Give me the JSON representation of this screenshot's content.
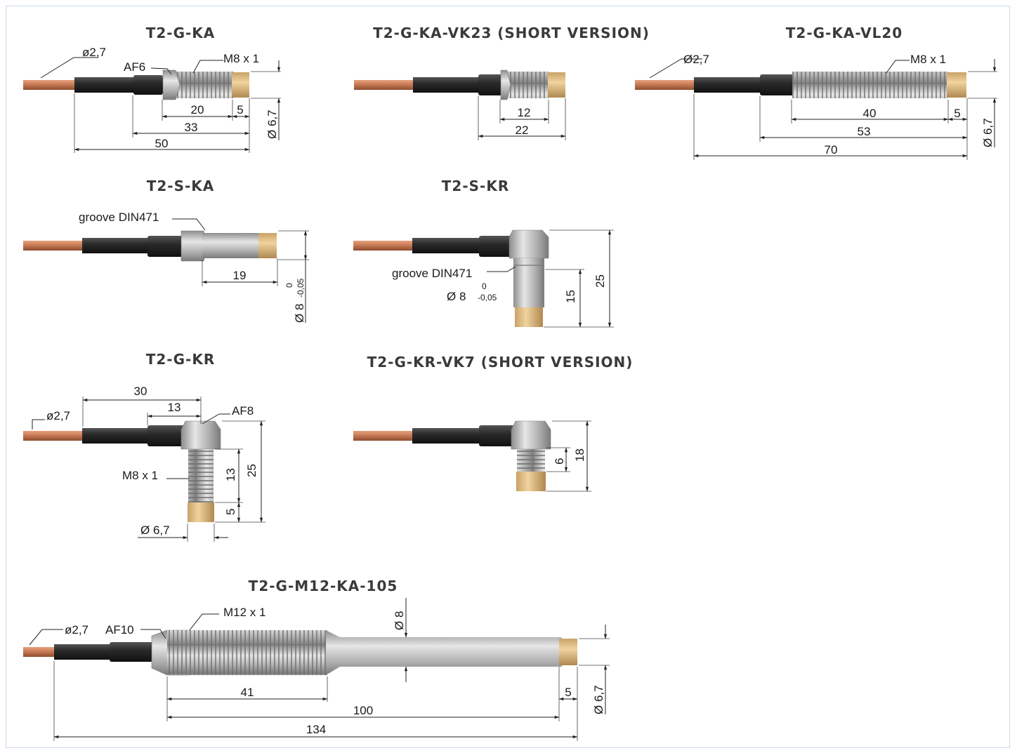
{
  "colors": {
    "copper": "#c87a55",
    "cable": "#2a2a2a",
    "steel": "#b8b8b8",
    "brass": "#d9b57a",
    "frame": "#c9d9e8"
  },
  "parts": [
    {
      "id": "t2-g-ka",
      "title": "T2-G-KA",
      "labels": {
        "cable_dia": "ø2,7",
        "af": "AF6",
        "thread": "M8 x 1",
        "d1": "20",
        "d2": "5",
        "d3": "33",
        "d4": "50",
        "dia": "Ø 6,7"
      }
    },
    {
      "id": "t2-g-ka-vk23",
      "title": "T2-G-KA-VK23 (SHORT VERSION)",
      "labels": {
        "d1": "12",
        "d2": "22"
      }
    },
    {
      "id": "t2-g-ka-vl20",
      "title": "T2-G-KA-VL20",
      "labels": {
        "cable_dia": "Ø2,7",
        "thread": "M8 x 1",
        "d1": "40",
        "d2": "5",
        "d3": "53",
        "d4": "70",
        "dia": "Ø 6,7"
      }
    },
    {
      "id": "t2-s-ka",
      "title": "T2-S-KA",
      "labels": {
        "groove": "groove DIN471",
        "d1": "19",
        "dia": "Ø 8",
        "tol_upper": "0",
        "tol_lower": "-0,05"
      }
    },
    {
      "id": "t2-s-kr",
      "title": "T2-S-KR",
      "labels": {
        "groove": "groove DIN471",
        "dia": "Ø 8",
        "tol_upper": "0",
        "tol_lower": "-0,05",
        "d1": "15",
        "d2": "25"
      }
    },
    {
      "id": "t2-g-kr",
      "title": "T2-G-KR",
      "labels": {
        "cable_dia": "ø2,7",
        "af": "AF8",
        "thread": "M8 x 1",
        "d1": "30",
        "d2": "13",
        "d3": "13",
        "d4": "25",
        "d5": "5",
        "dia": "Ø 6,7"
      }
    },
    {
      "id": "t2-g-kr-vk7",
      "title": "T2-G-KR-VK7 (SHORT VERSION)",
      "labels": {
        "d1": "6",
        "d2": "18"
      }
    },
    {
      "id": "t2-g-m12-ka-105",
      "title": "T2-G-M12-KA-105",
      "labels": {
        "cable_dia": "ø2,7",
        "af": "AF10",
        "thread": "M12 x 1",
        "dia8": "Ø 8",
        "d1": "41",
        "d2": "100",
        "d3": "5",
        "d4": "134",
        "dia": "Ø 6,7"
      }
    }
  ]
}
